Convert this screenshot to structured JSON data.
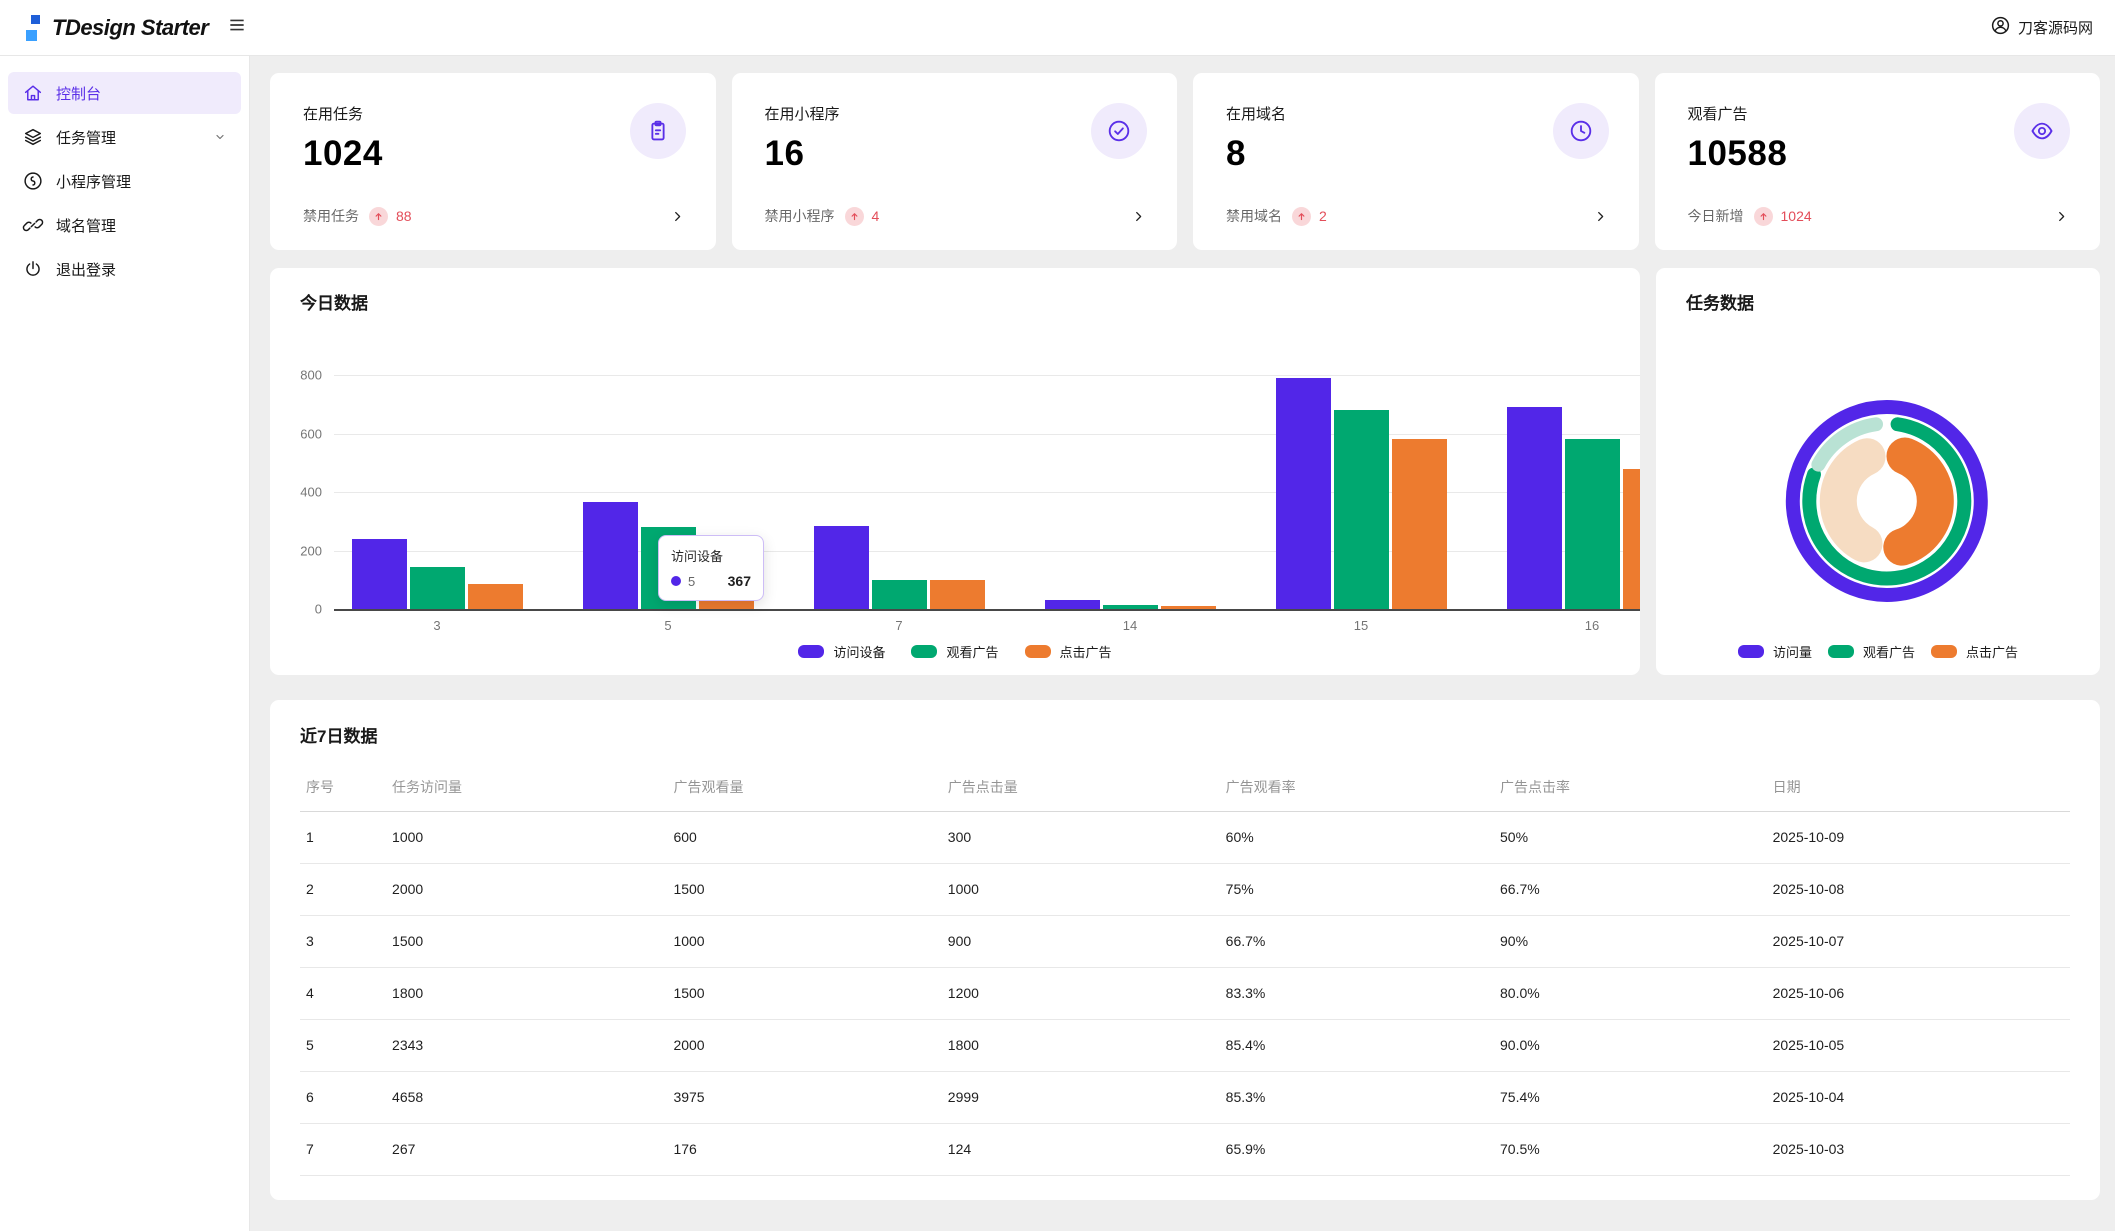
{
  "header": {
    "logo_text": "TDesign Starter",
    "user_name": "刀客源码网"
  },
  "sidebar": {
    "items": [
      {
        "label": "控制台",
        "icon": "home",
        "active": true,
        "chevron": false
      },
      {
        "label": "任务管理",
        "icon": "layers",
        "active": false,
        "chevron": true
      },
      {
        "label": "小程序管理",
        "icon": "miniprogram",
        "active": false,
        "chevron": false
      },
      {
        "label": "域名管理",
        "icon": "link",
        "active": false,
        "chevron": false
      },
      {
        "label": "退出登录",
        "icon": "power",
        "active": false,
        "chevron": false
      }
    ]
  },
  "stat_cards": [
    {
      "title": "在用任务",
      "value": "1024",
      "icon": "clipboard",
      "footer_label": "禁用任务",
      "footer_value": "88"
    },
    {
      "title": "在用小程序",
      "value": "16",
      "icon": "check-circle",
      "footer_label": "禁用小程序",
      "footer_value": "4"
    },
    {
      "title": "在用域名",
      "value": "8",
      "icon": "clock",
      "footer_label": "禁用域名",
      "footer_value": "2"
    },
    {
      "title": "观看广告",
      "value": "10588",
      "icon": "eye",
      "footer_label": "今日新增",
      "footer_value": "1024"
    }
  ],
  "colors": {
    "brand": "#5226e8",
    "brand_light": "#f0ebfc",
    "green": "#00a870",
    "green_light": "#b9e2d4",
    "orange": "#ed7b2f",
    "orange_light": "#f6dcc2",
    "red": "#e34d59",
    "red_light": "#f9d7d9"
  },
  "tooltip": {
    "title": "访问设备",
    "series_label": "5",
    "value": "367"
  },
  "chart_data": [
    {
      "type": "bar",
      "title": "今日数据",
      "categories": [
        "3",
        "5",
        "7",
        "14",
        "15",
        "16"
      ],
      "series": [
        {
          "name": "访问设备",
          "color": "#5226e8",
          "values": [
            240,
            367,
            285,
            30,
            790,
            690
          ]
        },
        {
          "name": "观看广告",
          "color": "#00a870",
          "values": [
            145,
            280,
            100,
            15,
            680,
            580
          ]
        },
        {
          "name": "点击广告",
          "color": "#ed7b2f",
          "values": [
            85,
            240,
            100,
            10,
            580,
            480
          ]
        }
      ],
      "ylim": [
        0,
        800
      ],
      "yticks": [
        0,
        200,
        400,
        600,
        800
      ],
      "grid": true,
      "legend_position": "bottom"
    },
    {
      "type": "pie",
      "title": "任务数据",
      "variant": "nested-donut",
      "rings": [
        {
          "name": "访问量",
          "segments": [
            {
              "label": "访问量",
              "value": 100,
              "color": "#5226e8"
            }
          ]
        },
        {
          "name": "观看广告",
          "segments": [
            {
              "label": "观看广告",
              "value": 84,
              "color": "#00a870"
            },
            {
              "label": "剩余",
              "value": 16,
              "color": "#b9e2d4"
            }
          ]
        },
        {
          "name": "点击广告",
          "segments": [
            {
              "label": "点击广告",
              "value": 51,
              "color": "#ed7b2f"
            },
            {
              "label": "剩余",
              "value": 49,
              "color": "#f6dcc2"
            }
          ]
        }
      ],
      "legend": [
        "访问量",
        "观看广告",
        "点击广告"
      ],
      "legend_position": "bottom"
    }
  ],
  "table": {
    "title": "近7日数据",
    "columns": [
      "序号",
      "任务访问量",
      "广告观看量",
      "广告点击量",
      "广告观看率",
      "广告点击率",
      "日期"
    ],
    "rows": [
      [
        "1",
        "1000",
        "600",
        "300",
        "60%",
        "50%",
        "2025-10-09"
      ],
      [
        "2",
        "2000",
        "1500",
        "1000",
        "75%",
        "66.7%",
        "2025-10-08"
      ],
      [
        "3",
        "1500",
        "1000",
        "900",
        "66.7%",
        "90%",
        "2025-10-07"
      ],
      [
        "4",
        "1800",
        "1500",
        "1200",
        "83.3%",
        "80.0%",
        "2025-10-06"
      ],
      [
        "5",
        "2343",
        "2000",
        "1800",
        "85.4%",
        "90.0%",
        "2025-10-05"
      ],
      [
        "6",
        "4658",
        "3975",
        "2999",
        "85.3%",
        "75.4%",
        "2025-10-04"
      ],
      [
        "7",
        "267",
        "176",
        "124",
        "65.9%",
        "70.5%",
        "2025-10-03"
      ]
    ]
  }
}
